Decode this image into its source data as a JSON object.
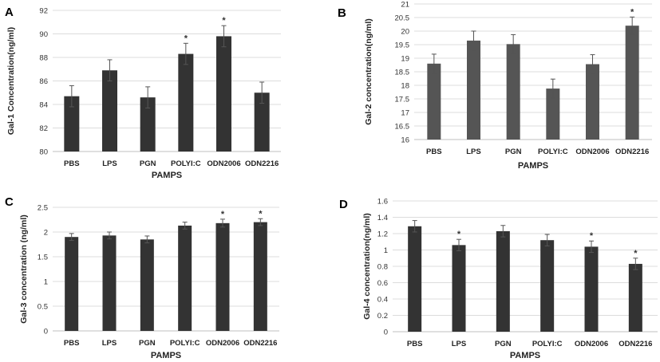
{
  "chart_data": [
    {
      "type": "bar",
      "panel": "A",
      "categories": [
        "PBS",
        "LPS",
        "PGN",
        "POLYI:C",
        "ODN2006",
        "ODN2216"
      ],
      "values": [
        84.7,
        86.9,
        84.6,
        88.3,
        89.8,
        85.0
      ],
      "errors": [
        0.9,
        0.9,
        0.9,
        0.9,
        0.9,
        0.9
      ],
      "significant": [
        false,
        false,
        false,
        true,
        true,
        false
      ],
      "xlabel": "PAMPS",
      "ylabel": "Gal-1 Concentration(ng/ml)",
      "ylim": [
        80,
        92
      ],
      "yticks": [
        80,
        82,
        84,
        86,
        88,
        90,
        92
      ],
      "bar_color": "#333333",
      "grid": true
    },
    {
      "type": "bar",
      "panel": "B",
      "categories": [
        "PBS",
        "LPS",
        "PGN",
        "POLYI:C",
        "ODN2006",
        "ODN2216"
      ],
      "values": [
        18.8,
        19.65,
        19.52,
        17.88,
        18.78,
        20.2
      ],
      "errors": [
        0.35,
        0.35,
        0.35,
        0.35,
        0.35,
        0.32
      ],
      "significant": [
        false,
        false,
        false,
        false,
        false,
        true
      ],
      "xlabel": "PAMPS",
      "ylabel": "Gal-2 concentration(ng/ml)",
      "ylim": [
        16,
        21
      ],
      "yticks": [
        16,
        16.5,
        17,
        17.5,
        18,
        18.5,
        19,
        19.5,
        20,
        20.5,
        21
      ],
      "bar_color": "#555555",
      "grid": true
    },
    {
      "type": "bar",
      "panel": "C",
      "categories": [
        "PBS",
        "LPS",
        "PGN",
        "POLYI:C",
        "ODN2006",
        "ODN2216"
      ],
      "values": [
        1.9,
        1.93,
        1.85,
        2.13,
        2.18,
        2.2
      ],
      "errors": [
        0.07,
        0.07,
        0.07,
        0.07,
        0.08,
        0.07
      ],
      "significant": [
        false,
        false,
        false,
        false,
        true,
        true
      ],
      "xlabel": "PAMPS",
      "ylabel": "Gal-3 concentration (ng/ml)",
      "ylim": [
        0,
        2.5
      ],
      "yticks": [
        0,
        0.5,
        1,
        1.5,
        2,
        2.5
      ],
      "bar_color": "#333333",
      "grid": true
    },
    {
      "type": "bar",
      "panel": "D",
      "categories": [
        "PBS",
        "LPS",
        "PGN",
        "POLYI:C",
        "ODN2006",
        "ODN2216"
      ],
      "values": [
        1.29,
        1.06,
        1.23,
        1.12,
        1.04,
        0.83
      ],
      "errors": [
        0.07,
        0.07,
        0.07,
        0.07,
        0.07,
        0.07
      ],
      "significant": [
        false,
        true,
        false,
        false,
        true,
        true
      ],
      "xlabel": "PAMPS",
      "ylabel": "Gal-4 concentration(ng/ml)",
      "ylim": [
        0,
        1.6
      ],
      "yticks": [
        0,
        0.2,
        0.4,
        0.6,
        0.8,
        1,
        1.2,
        1.4,
        1.6
      ],
      "bar_color": "#333333",
      "grid": true
    }
  ]
}
